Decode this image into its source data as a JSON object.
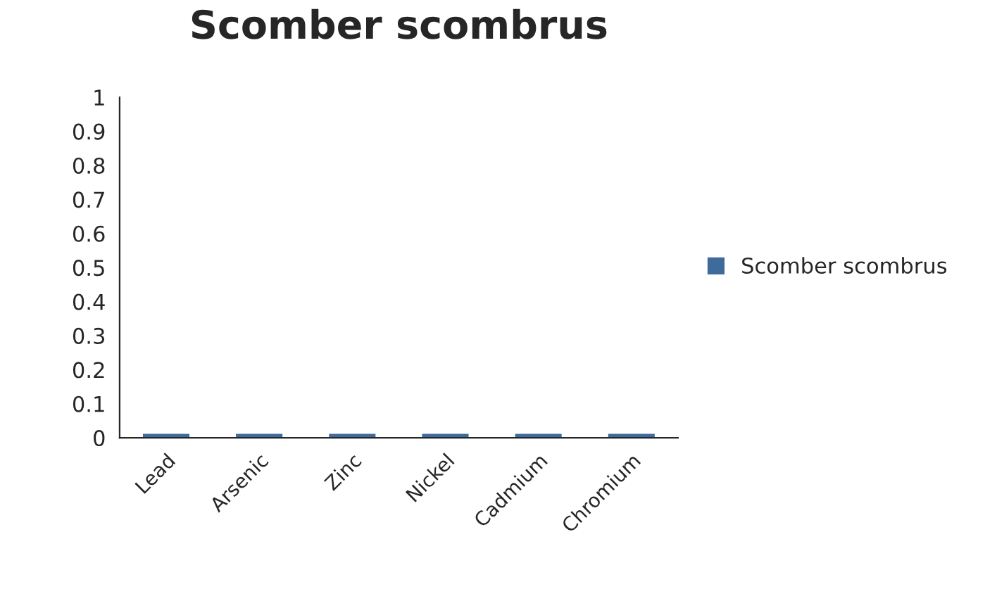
{
  "chart_data": {
    "type": "bar",
    "title": "Scomber scombrus",
    "categories": [
      "Lead",
      "Arsenic",
      "Zinc",
      "Nickel",
      "Cadmium",
      "Chromium"
    ],
    "series": [
      {
        "name": "Scomber scombrus",
        "color": "#3f6a9c",
        "values": [
          0,
          0,
          0,
          0,
          0,
          0
        ]
      }
    ],
    "ylim": [
      0,
      1
    ],
    "yticks": [
      0,
      0.1,
      0.2,
      0.3,
      0.4,
      0.5,
      0.6,
      0.7,
      0.8,
      0.9,
      1
    ],
    "legend": "right"
  }
}
